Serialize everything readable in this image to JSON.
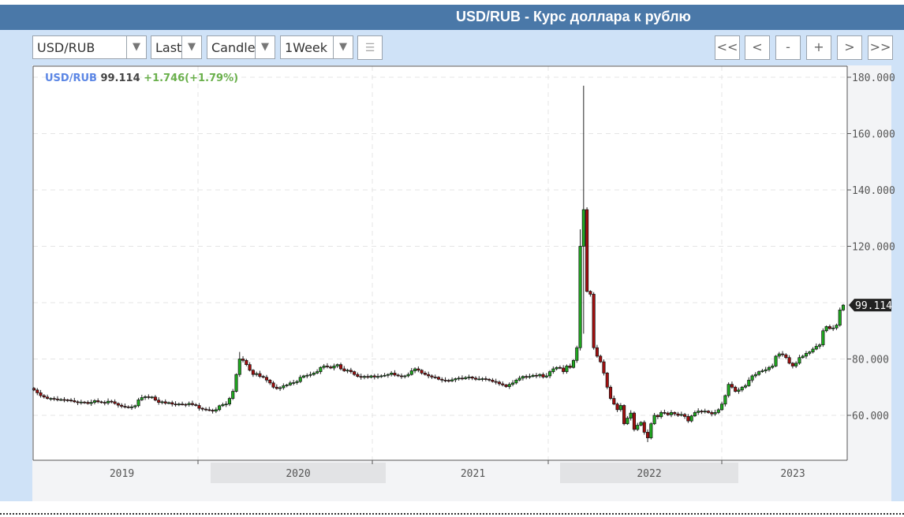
{
  "header": {
    "title": "USD/RUB - Курс доллара к рублю"
  },
  "toolbar": {
    "symbol": "USD/RUB",
    "price_type": "Last",
    "chart_type": "Candle",
    "interval": "1Week",
    "dropdown_icon": "triangle-down",
    "settings_icon": "list-icon",
    "nav": [
      "<<",
      "<",
      "-",
      "+",
      ">",
      ">>"
    ]
  },
  "legend": {
    "symbol": "USD/RUB",
    "price": "99.114",
    "change": "+1.746(+1.79%)"
  },
  "colors": {
    "header": "#4a78a8",
    "up": "#1faa1f",
    "down": "#a30f0f",
    "symbol": "#5b86e5",
    "change": "#6ab04c"
  },
  "chart_data": {
    "type": "candlestick",
    "interval": "1Week",
    "ylim": [
      44,
      182
    ],
    "yticks": [
      "60.000",
      "80.000",
      "120.000",
      "140.000",
      "160.000",
      "180.000"
    ],
    "ytick_values": [
      60,
      80,
      120,
      140,
      160,
      180
    ],
    "last_price_label": "99.114",
    "xticks": [
      "2019",
      "2020",
      "2021",
      "2022",
      "2023"
    ],
    "grid": true,
    "weekly_close": {
      "2019": [
        69,
        68,
        67,
        66.5,
        66,
        66,
        65.8,
        65.5,
        65.6,
        65.5,
        65.4,
        65.2,
        64.8,
        64.5,
        64.7,
        64.6,
        64.2,
        64.6,
        65.2,
        64.8,
        64.6,
        64.4,
        65,
        64.8,
        64.2,
        63.6,
        63.2,
        63,
        62.8,
        63,
        63.4,
        65.5,
        66.3,
        66.6,
        66.4,
        66.5,
        65.4,
        64.6,
        64.8,
        64.3,
        64.5,
        64,
        63.8,
        64,
        63.9,
        63.8,
        64.2,
        63.8,
        63.5,
        62.5,
        62.2,
        62
      ],
      "2020": [
        61.8,
        61.5,
        62,
        63.4,
        63.8,
        64,
        66,
        68.5,
        74.5,
        80,
        79.5,
        78,
        76,
        74.5,
        74.8,
        73.8,
        73.5,
        72.5,
        71.5,
        70,
        69.5,
        69.8,
        70.5,
        70.8,
        71.5,
        71.6,
        72,
        73.5,
        74,
        74.2,
        74.5,
        75,
        75.5,
        77,
        77.5,
        77.2,
        76.8,
        77.5,
        78,
        76.5,
        75.8,
        76,
        75.5,
        74.5,
        73.8,
        73.5,
        73.8,
        73.5,
        74,
        73.6,
        73.8,
        74
      ],
      "2021": [
        74.2,
        74.5,
        75,
        74.3,
        74,
        73.8,
        74,
        74.5,
        75.8,
        76.5,
        76,
        75,
        74.5,
        74,
        73.6,
        73.5,
        72.8,
        72.5,
        72.4,
        72.2,
        72.6,
        73,
        73.2,
        73,
        73.4,
        73.6,
        73.2,
        72.8,
        72.9,
        73,
        72.8,
        72.5,
        72,
        71.8,
        71.2,
        70.8,
        70.2,
        71,
        71.5,
        72.5,
        73.2,
        73.8,
        73.5,
        73.8,
        74.2,
        74,
        74.5,
        73.6,
        74,
        75.5,
        76.5,
        77
      ],
      "2022": [
        76.8,
        75.5,
        77.5,
        77,
        79.5,
        84,
        120,
        133,
        104,
        103,
        84,
        81,
        79,
        75,
        70,
        66,
        64,
        62,
        63.5,
        57,
        59,
        60.8,
        55,
        56.5,
        57.5,
        54,
        52,
        57,
        60,
        59.5,
        61,
        60.8,
        60.2,
        61,
        60.5,
        60,
        60.3,
        59.6,
        58,
        59.8,
        61,
        61.5,
        61.2,
        61.5,
        61,
        60.5,
        61,
        62,
        64,
        67,
        71,
        70
      ],
      "2023": [
        68.5,
        69,
        70,
        70.5,
        72.5,
        74,
        74.5,
        75.5,
        75.8,
        76.2,
        77,
        77.5,
        81,
        81.8,
        81.5,
        80.5,
        78.5,
        77.5,
        78.5,
        80.5,
        81,
        82,
        82.5,
        83.5,
        84.5,
        85,
        90,
        91.5,
        90.8,
        91,
        92,
        97.4,
        99.114
      ]
    },
    "notable_extremes": [
      {
        "year": "2022",
        "week": 7,
        "high": 177,
        "low": 89
      },
      {
        "year": "2022",
        "week": 6,
        "high": 126,
        "low": 83
      },
      {
        "year": "2020",
        "week": 9,
        "high": 82.5
      },
      {
        "year": "2022",
        "week": 26,
        "low": 50.5
      }
    ]
  }
}
